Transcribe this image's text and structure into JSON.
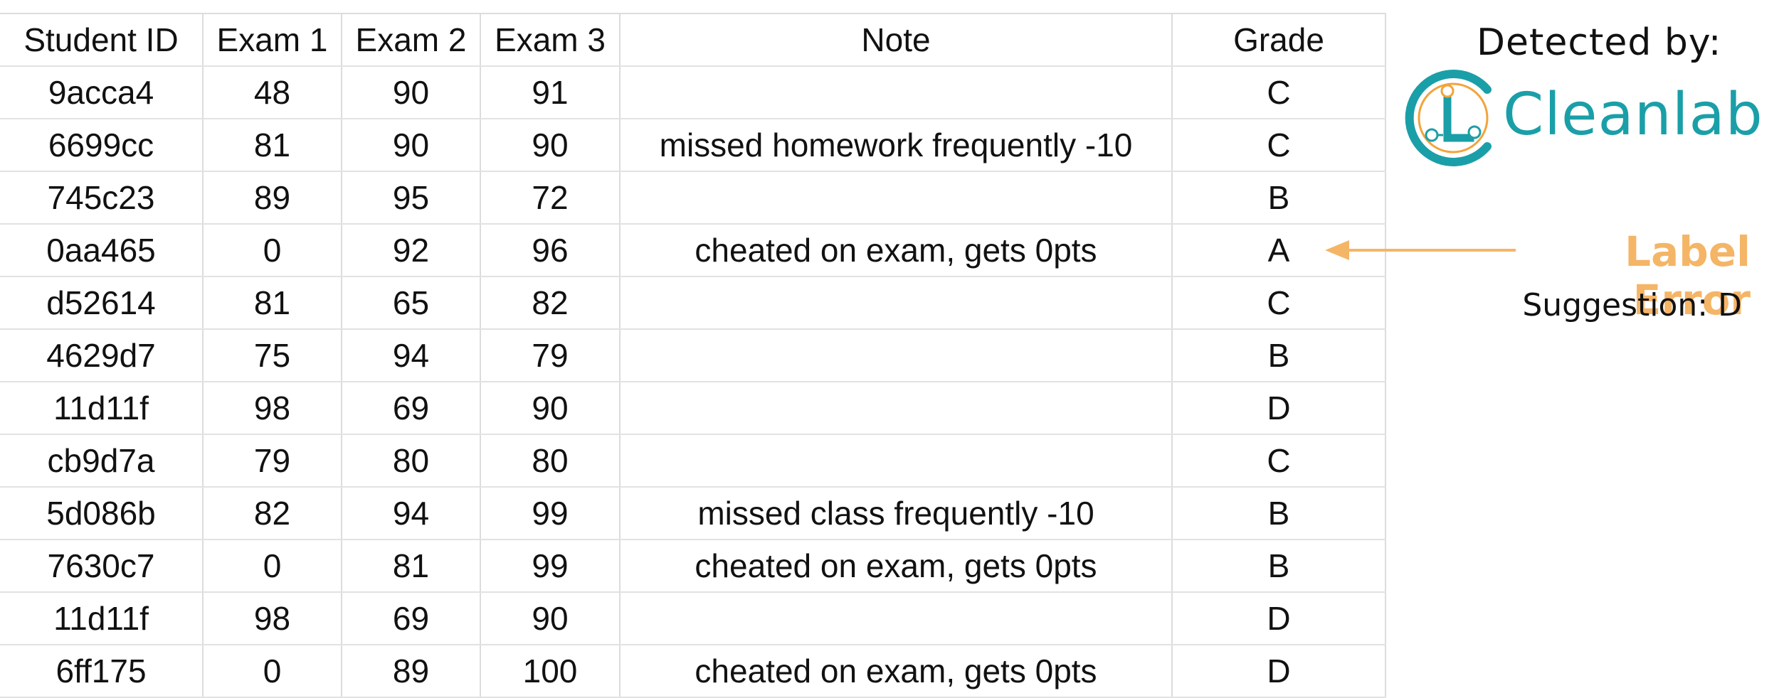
{
  "table": {
    "headers": [
      "Student ID",
      "Exam 1",
      "Exam 2",
      "Exam 3",
      "Note",
      "Grade"
    ],
    "rows": [
      [
        "9acca4",
        "48",
        "90",
        "91",
        "",
        "C"
      ],
      [
        "6699cc",
        "81",
        "90",
        "90",
        "missed homework frequently -10",
        "C"
      ],
      [
        "745c23",
        "89",
        "95",
        "72",
        "",
        "B"
      ],
      [
        "0aa465",
        "0",
        "92",
        "96",
        "cheated on exam, gets 0pts",
        "A"
      ],
      [
        "d52614",
        "81",
        "65",
        "82",
        "",
        "C"
      ],
      [
        "4629d7",
        "75",
        "94",
        "79",
        "",
        "B"
      ],
      [
        "11d11f",
        "98",
        "69",
        "90",
        "",
        "D"
      ],
      [
        "cb9d7a",
        "79",
        "80",
        "80",
        "",
        "C"
      ],
      [
        "5d086b",
        "82",
        "94",
        "99",
        "missed class frequently -10",
        "B"
      ],
      [
        "7630c7",
        "0",
        "81",
        "99",
        "cheated on exam, gets 0pts",
        "B"
      ],
      [
        "11d11f",
        "98",
        "69",
        "90",
        "",
        "D"
      ],
      [
        "6ff175",
        "0",
        "89",
        "100",
        "cheated on exam, gets 0pts",
        "D"
      ]
    ]
  },
  "panel": {
    "detected_by": "Detected by:",
    "brand": "Cleanlab",
    "label_error": "Label Error",
    "suggestion": "Suggestion: D"
  },
  "icons": {
    "logo": "cleanlab-logo-icon",
    "arrow": "arrow-left-icon"
  },
  "colors": {
    "brand_teal": "#1a9fa8",
    "logo_orange": "#f2a43a",
    "label_error_orange": "#f5b566",
    "grid_line": "#dcdcdc"
  }
}
